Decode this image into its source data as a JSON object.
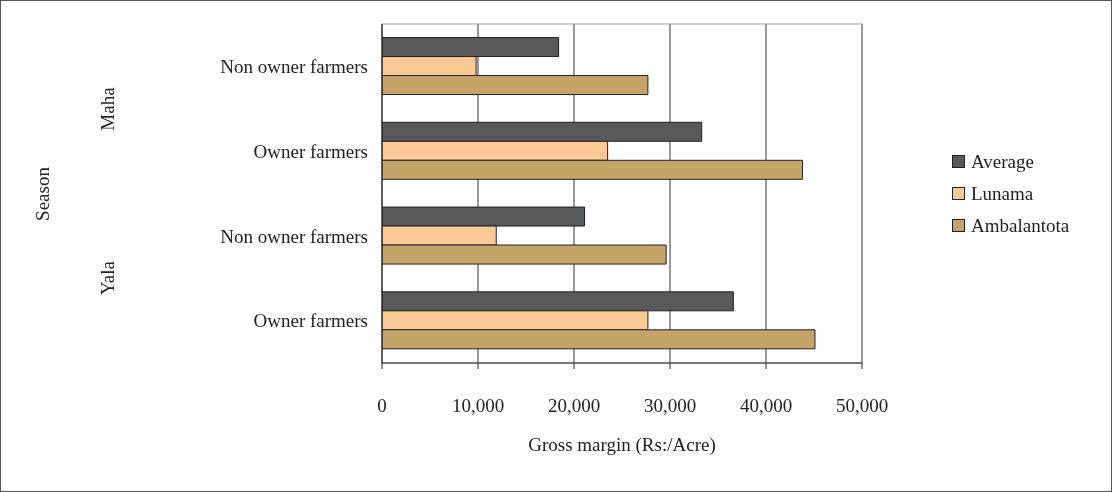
{
  "chart_data": {
    "type": "bar",
    "orientation": "horizontal",
    "xlabel": "Gross margin (Rs:/Acre)",
    "categories": [
      "Non owner farmers",
      "Owner farmers",
      "Non owner farmers",
      "Owner farmers"
    ],
    "annotations": [
      "Season",
      "Maha",
      "Yala"
    ],
    "series": [
      {
        "name": "Average",
        "color": "#58595b",
        "values": [
          18400,
          33300,
          21100,
          36600
        ]
      },
      {
        "name": "Lunama",
        "color": "#fbc995",
        "values": [
          9800,
          23500,
          11900,
          27700
        ]
      },
      {
        "name": "Ambalantota",
        "color": "#c4a468",
        "values": [
          27700,
          43800,
          29600,
          45100
        ]
      }
    ],
    "xlim": [
      0,
      50000
    ],
    "xticks": [
      0,
      {
        "value": 10000,
        "label": "10,000"
      },
      {
        "value": 20000,
        "label": "20,000"
      },
      {
        "value": 30000,
        "label": "30,000"
      },
      {
        "value": 40000,
        "label": "40,000"
      },
      {
        "value": 50000,
        "label": "50,000"
      }
    ],
    "grid": "x",
    "legend": "right"
  }
}
